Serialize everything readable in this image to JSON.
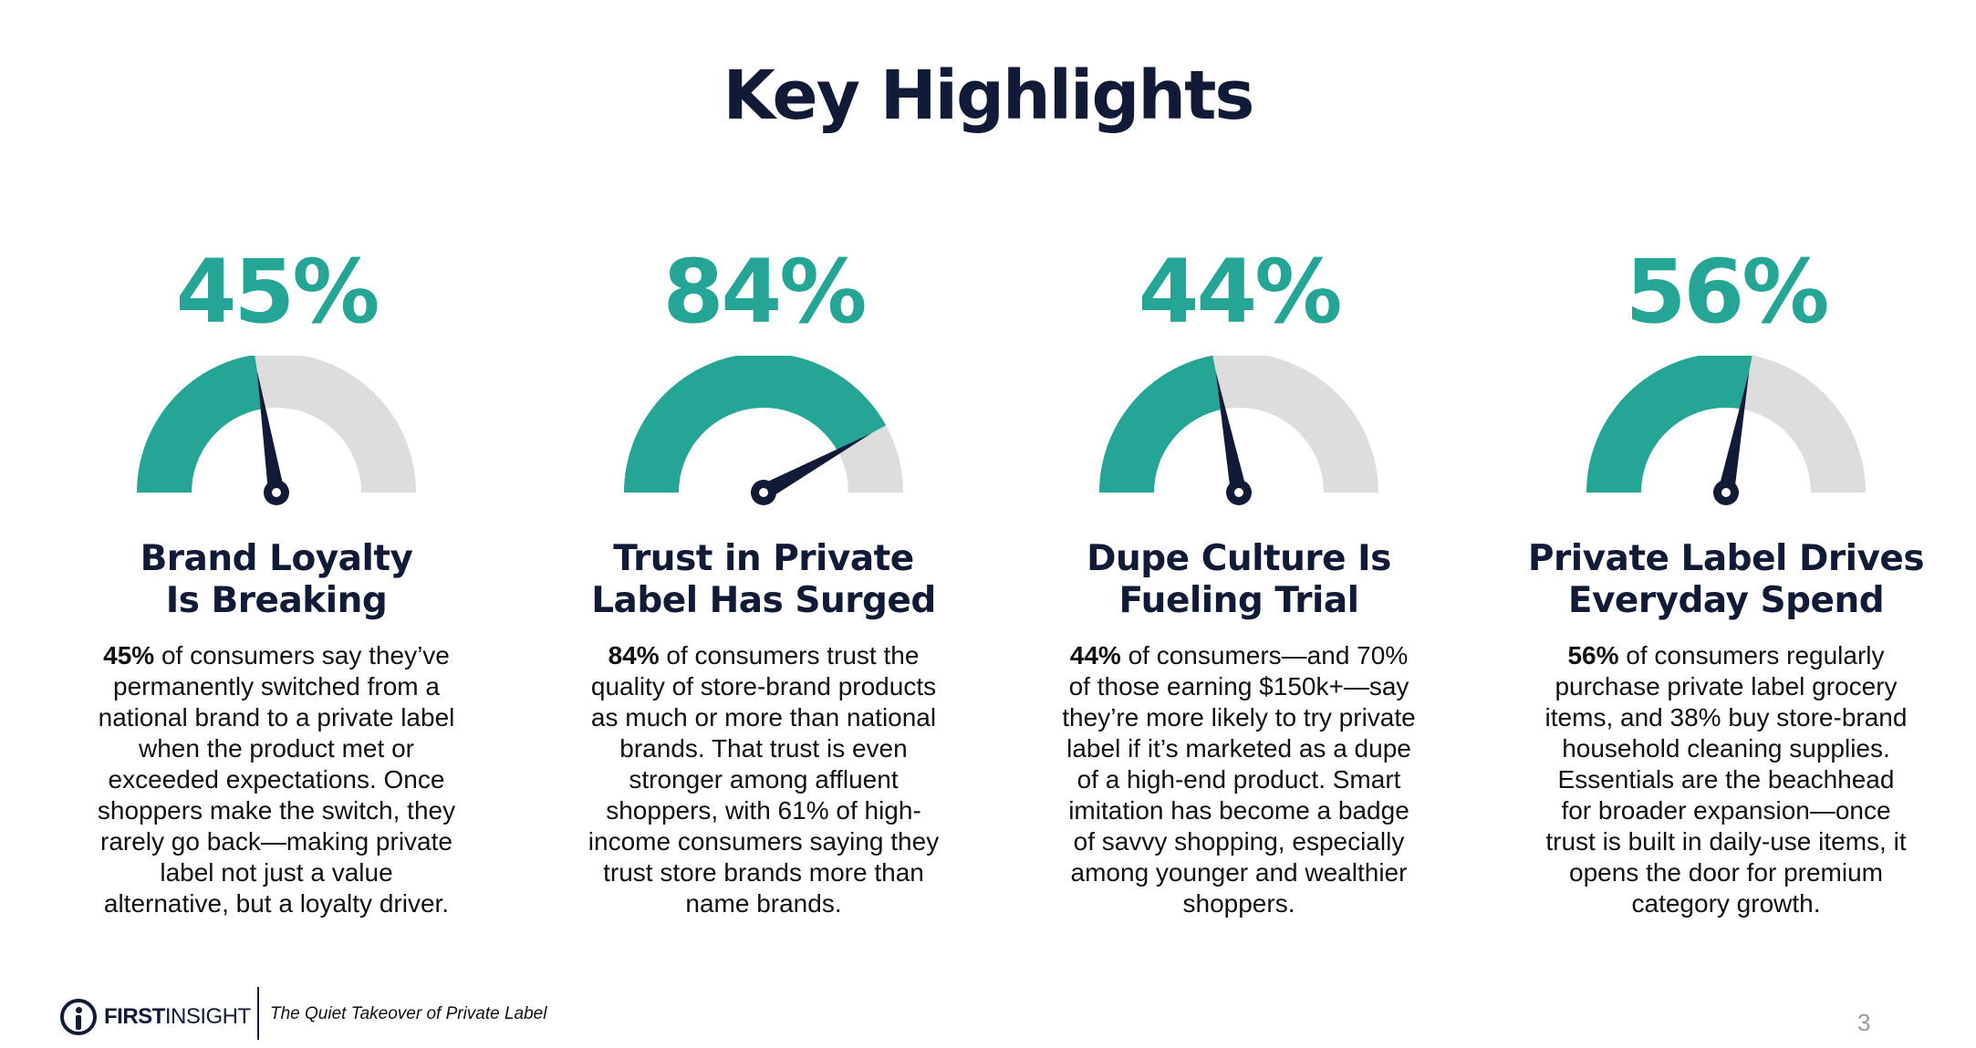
{
  "title": "Key Highlights",
  "colors": {
    "accent": "#25a596",
    "track": "#dddddd",
    "navy": "#111a36"
  },
  "cards": [
    {
      "percent": "45%",
      "value": 0.45,
      "heading_line1": "Brand Loyalty",
      "heading_line2": "Is Breaking",
      "bold": "45%",
      "text": " of consumers say they’ve permanently switched from a national brand to a private label when the product met or exceeded expectations. Once shoppers make the switch, they rarely go back—making private label not just a value alternative, but a loyalty driver."
    },
    {
      "percent": "84%",
      "value": 0.84,
      "heading_line1": "Trust in Private",
      "heading_line2": "Label Has Surged",
      "bold": "84%",
      "text": " of consumers trust the quality of store-brand products as much or more than national brands. That trust is even stronger among affluent shoppers, with 61% of high-income consumers saying they trust store brands more than name brands."
    },
    {
      "percent": "44%",
      "value": 0.44,
      "heading_line1": "Dupe Culture Is",
      "heading_line2": "Fueling Trial",
      "bold": "44%",
      "text": " of consumers—and 70% of those earning $150k+—say they’re more likely to try private label if it’s marketed as a dupe of a high-end product. Smart imitation has become a badge of savvy shopping, especially among younger and wealthier shoppers."
    },
    {
      "percent": "56%",
      "value": 0.56,
      "heading_line1": "Private Label Drives",
      "heading_line2": "Everyday Spend",
      "bold": "56%",
      "text": " of consumers regularly purchase private label grocery items, and 38% buy store-brand household cleaning supplies. Essentials are the beachhead for broader expansion—once trust is built in daily-use items, it opens the door for premium category growth."
    }
  ],
  "footer": {
    "logo_bold": "FIRST",
    "logo_light": "INSIGHT",
    "tagline": "The Quiet Takeover of Private Label",
    "page_number": "3"
  }
}
